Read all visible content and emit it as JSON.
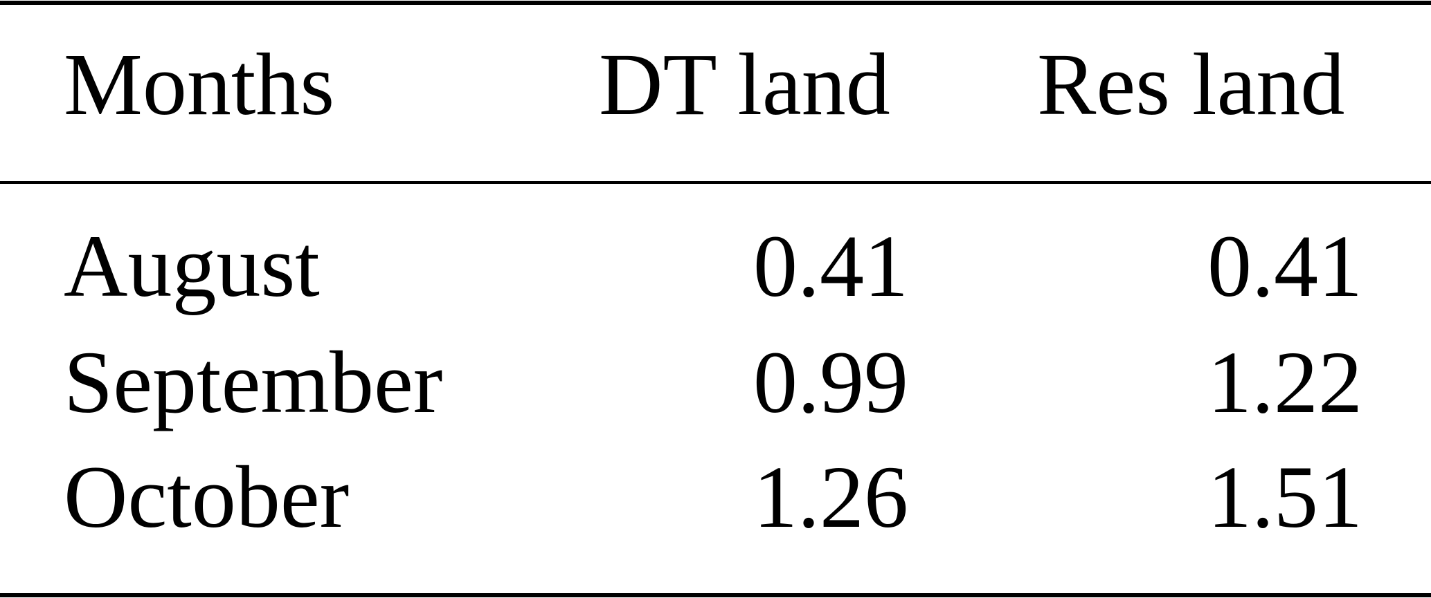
{
  "table": {
    "header": [
      "Months",
      "DT land",
      "Res land"
    ],
    "rows": [
      [
        "August",
        0.41,
        0.41
      ],
      [
        "September",
        0.99,
        1.22
      ],
      [
        "October",
        1.26,
        1.51
      ]
    ]
  }
}
